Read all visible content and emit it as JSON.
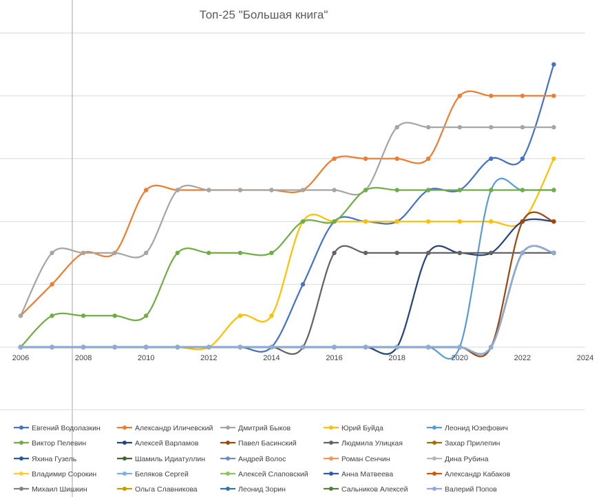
{
  "chart_data": {
    "type": "line",
    "title": "Топ-25 \"Большая книга\"",
    "xlabel": "",
    "ylabel": "",
    "xlim": [
      2006,
      2024
    ],
    "ylim": [
      0,
      10
    ],
    "x_ticks": [
      "2006",
      "2008",
      "2010",
      "2012",
      "2014",
      "2016",
      "2018",
      "2020",
      "2022",
      "2024"
    ],
    "grid": true,
    "legend_position": "bottom",
    "smooth": true,
    "x": [
      2006,
      2007,
      2008,
      2009,
      2010,
      2011,
      2012,
      2013,
      2014,
      2015,
      2016,
      2017,
      2018,
      2019,
      2020,
      2021,
      2022,
      2023
    ],
    "series": [
      {
        "name": "Евгений Водолазкин",
        "color": "#4472C4",
        "values": [
          0,
          0,
          0,
          0,
          0,
          0,
          0,
          0,
          0,
          2,
          4,
          4,
          4,
          5,
          5,
          6,
          6,
          9
        ]
      },
      {
        "name": "Александр Иличевский",
        "color": "#ED7D31",
        "values": [
          1,
          2,
          3,
          3,
          5,
          5,
          5,
          5,
          5,
          5,
          6,
          6,
          6,
          6,
          8,
          8,
          8,
          8
        ]
      },
      {
        "name": "Дмитрий Быков",
        "color": "#A5A5A5",
        "values": [
          1,
          3,
          3,
          3,
          3,
          5,
          5,
          5,
          5,
          5,
          5,
          5,
          7,
          7,
          7,
          7,
          7,
          7
        ]
      },
      {
        "name": "Юрий Буйда",
        "color": "#FFC000",
        "values": [
          0,
          0,
          0,
          0,
          0,
          0,
          0,
          1,
          1,
          4,
          4,
          4,
          4,
          4,
          4,
          4,
          4,
          6
        ]
      },
      {
        "name": "Леонид Юзефович",
        "color": "#5B9BD5",
        "values": [
          0,
          0,
          0,
          0,
          0,
          0,
          0,
          0,
          0,
          0,
          0,
          0,
          0,
          0,
          0,
          5,
          5,
          5
        ]
      },
      {
        "name": "Виктор Пелевин",
        "color": "#70AD47",
        "values": [
          0,
          1,
          1,
          1,
          1,
          3,
          3,
          3,
          3,
          4,
          4,
          5,
          5,
          5,
          5,
          5,
          5,
          5
        ]
      },
      {
        "name": "Алексей Варламов",
        "color": "#264478",
        "values": [
          0,
          0,
          0,
          0,
          0,
          0,
          0,
          0,
          0,
          0,
          0,
          0,
          0,
          3,
          3,
          3,
          4,
          4
        ]
      },
      {
        "name": "Павел Басинский",
        "color": "#9E480E",
        "values": [
          0,
          0,
          0,
          0,
          0,
          0,
          0,
          0,
          0,
          0,
          0,
          0,
          0,
          0,
          0,
          0,
          4,
          4
        ]
      },
      {
        "name": "Людмила Улицкая",
        "color": "#636363",
        "values": [
          0,
          0,
          0,
          0,
          0,
          0,
          0,
          0,
          0,
          0,
          3,
          3,
          3,
          3,
          3,
          3,
          3,
          3
        ]
      },
      {
        "name": "Захар Прилепин",
        "color": "#997300",
        "values": [
          0,
          0,
          0,
          0,
          0,
          0,
          0,
          0,
          0,
          0,
          0,
          0,
          0,
          0,
          0,
          0,
          3,
          3
        ]
      },
      {
        "name": "Яхина Гузель",
        "color": "#255E91",
        "values": [
          0,
          0,
          0,
          0,
          0,
          0,
          0,
          0,
          0,
          0,
          0,
          0,
          0,
          0,
          0,
          0,
          3,
          3
        ]
      },
      {
        "name": "Шамиль Идиатуллин",
        "color": "#43682B",
        "values": [
          0,
          0,
          0,
          0,
          0,
          0,
          0,
          0,
          0,
          0,
          0,
          0,
          0,
          0,
          0,
          0,
          3,
          3
        ]
      },
      {
        "name": "Андрей Волос",
        "color": "#698ED0",
        "values": [
          0,
          0,
          0,
          0,
          0,
          0,
          0,
          0,
          0,
          0,
          0,
          0,
          0,
          0,
          0,
          0,
          3,
          3
        ]
      },
      {
        "name": "Роман Сенчин",
        "color": "#F1975A",
        "values": [
          0,
          0,
          0,
          0,
          0,
          0,
          0,
          0,
          0,
          0,
          0,
          0,
          0,
          0,
          0,
          0,
          3,
          3
        ]
      },
      {
        "name": "Дина Рубина",
        "color": "#B7B7B7",
        "values": [
          0,
          0,
          0,
          0,
          0,
          0,
          0,
          0,
          0,
          0,
          0,
          0,
          0,
          0,
          0,
          0,
          3,
          3
        ]
      },
      {
        "name": "Владимир Сорокин",
        "color": "#FFCD33",
        "values": [
          0,
          0,
          0,
          0,
          0,
          0,
          0,
          0,
          0,
          0,
          0,
          0,
          0,
          0,
          0,
          0,
          3,
          3
        ]
      },
      {
        "name": "Беляков Сергей",
        "color": "#7CAFDD",
        "values": [
          0,
          0,
          0,
          0,
          0,
          0,
          0,
          0,
          0,
          0,
          0,
          0,
          0,
          0,
          0,
          0,
          3,
          3
        ]
      },
      {
        "name": "Алексей Слаповский",
        "color": "#8CC168",
        "values": [
          0,
          0,
          0,
          0,
          0,
          0,
          0,
          0,
          0,
          0,
          0,
          0,
          0,
          0,
          0,
          0,
          3,
          3
        ]
      },
      {
        "name": "Анна Матвеева",
        "color": "#335AA1",
        "values": [
          0,
          0,
          0,
          0,
          0,
          0,
          0,
          0,
          0,
          0,
          0,
          0,
          0,
          0,
          0,
          0,
          3,
          3
        ]
      },
      {
        "name": "Александр Кабаков",
        "color": "#C65911",
        "values": [
          0,
          0,
          0,
          0,
          0,
          0,
          0,
          0,
          0,
          0,
          0,
          0,
          0,
          0,
          0,
          0,
          3,
          3
        ]
      },
      {
        "name": "Михаил Шишкин",
        "color": "#848484",
        "values": [
          0,
          0,
          0,
          0,
          0,
          0,
          0,
          0,
          0,
          0,
          0,
          0,
          0,
          0,
          0,
          0,
          3,
          3
        ]
      },
      {
        "name": "Ольга Славникова",
        "color": "#CC9A00",
        "values": [
          0,
          0,
          0,
          0,
          0,
          0,
          0,
          0,
          0,
          0,
          0,
          0,
          0,
          0,
          0,
          0,
          3,
          3
        ]
      },
      {
        "name": "Леонид Зорин",
        "color": "#2E75B6",
        "values": [
          0,
          0,
          0,
          0,
          0,
          0,
          0,
          0,
          0,
          0,
          0,
          0,
          0,
          0,
          0,
          0,
          3,
          3
        ]
      },
      {
        "name": "Сальников Алексей",
        "color": "#548235",
        "values": [
          0,
          0,
          0,
          0,
          0,
          0,
          0,
          0,
          0,
          0,
          0,
          0,
          0,
          0,
          0,
          0,
          3,
          3
        ]
      },
      {
        "name": "Валерий Попов",
        "color": "#8FAADC",
        "values": [
          0,
          0,
          0,
          0,
          0,
          0,
          0,
          0,
          0,
          0,
          0,
          0,
          0,
          0,
          0,
          0,
          3,
          3
        ]
      }
    ]
  }
}
